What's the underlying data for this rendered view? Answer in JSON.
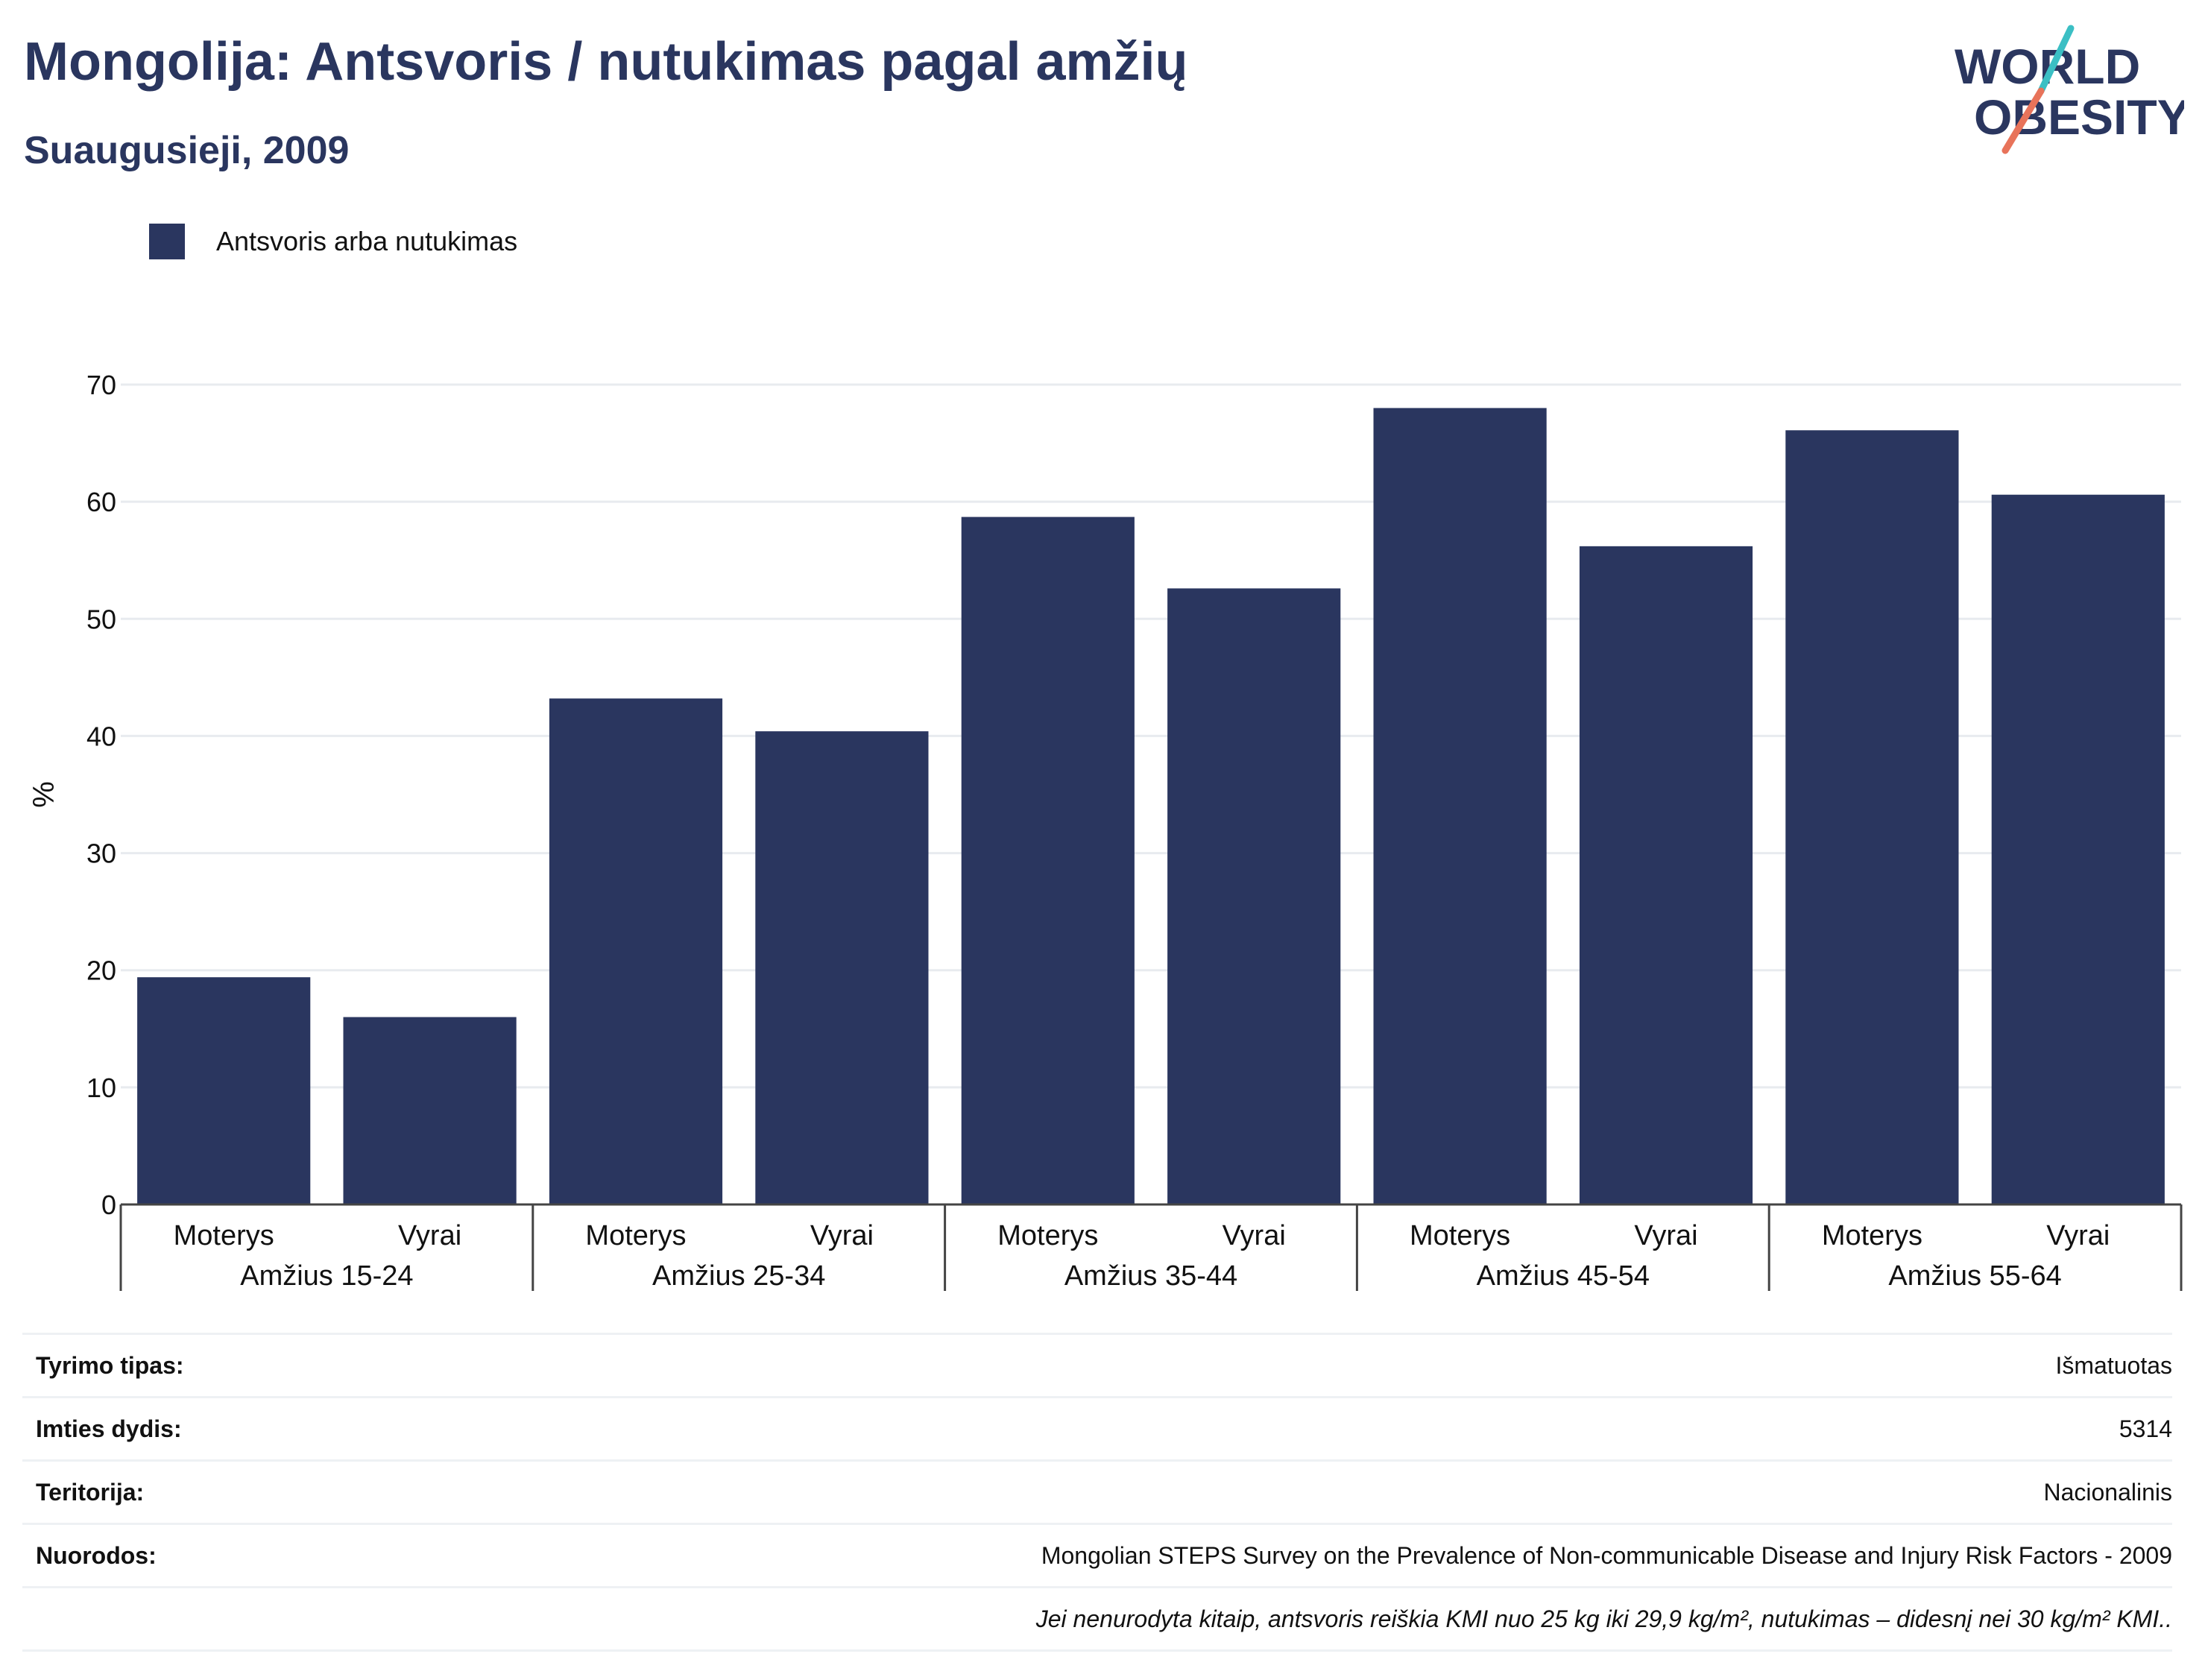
{
  "header": {
    "title": "Mongolija: Antsvoris / nutukimas pagal amžių",
    "subtitle": "Suaugusieji, 2009"
  },
  "logo": {
    "line1": "WORLD",
    "line2": "OBESITY",
    "accent_teal": "#3bbfc4",
    "accent_coral": "#e8735a"
  },
  "chart_data": {
    "type": "bar",
    "ylabel": "%",
    "ylim": [
      0,
      70
    ],
    "yticks": [
      0,
      10,
      20,
      30,
      40,
      50,
      60,
      70
    ],
    "grid": true,
    "legend_position": "top-left",
    "groups": [
      "Amžius 15-24",
      "Amžius 25-34",
      "Amžius 35-44",
      "Amžius 45-54",
      "Amžius 55-64"
    ],
    "subcategories": [
      "Moterys",
      "Vyrai"
    ],
    "series": [
      {
        "name": "Antsvoris arba nutukimas",
        "color": "#2a365f",
        "values": [
          19.4,
          16.0,
          43.2,
          40.4,
          58.7,
          52.6,
          68.0,
          56.2,
          66.1,
          60.6
        ]
      }
    ]
  },
  "info": [
    {
      "label": "Tyrimo tipas:",
      "value": "Išmatuotas"
    },
    {
      "label": "Imties dydis:",
      "value": "5314"
    },
    {
      "label": "Teritorija:",
      "value": "Nacionalinis"
    },
    {
      "label": "Nuorodos:",
      "value": "Mongolian STEPS Survey on the Prevalence of Non-communicable Disease and Injury Risk Factors - 2009"
    },
    {
      "label": "",
      "value": "Jei nenurodyta kitaip, antsvoris reiškia KMI nuo 25 kg iki 29,9 kg/m², nutukimas – didesnį nei 30 kg/m² KMI.."
    }
  ]
}
